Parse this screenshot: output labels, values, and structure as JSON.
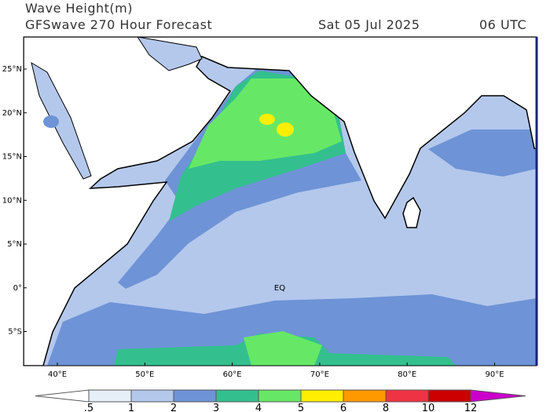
{
  "header": {
    "title": "Wave Height(m)",
    "subtitle": "GFSwave 270 Hour Forecast",
    "date": "Sat 05 Jul 2025",
    "time": "06 UTC"
  },
  "map": {
    "lat_labels": [
      "25°N",
      "20°N",
      "15°N",
      "10°N",
      "5°N",
      "0°",
      "5°S"
    ],
    "lon_labels": [
      "40°E",
      "50°E",
      "60°E",
      "70°E",
      "80°E",
      "90°E"
    ],
    "equator_label": "EQ"
  },
  "colorbar": {
    "labels": [
      ".5",
      "1",
      "2",
      "3",
      "4",
      "5",
      "6",
      "8",
      "10",
      "12"
    ],
    "colors": [
      "#ffffff",
      "#e6eef8",
      "#b4c8ec",
      "#6e93d6",
      "#33c08e",
      "#66e866",
      "#ffee00",
      "#ff9900",
      "#ee3344",
      "#cc0000",
      "#cc00cc"
    ]
  }
}
